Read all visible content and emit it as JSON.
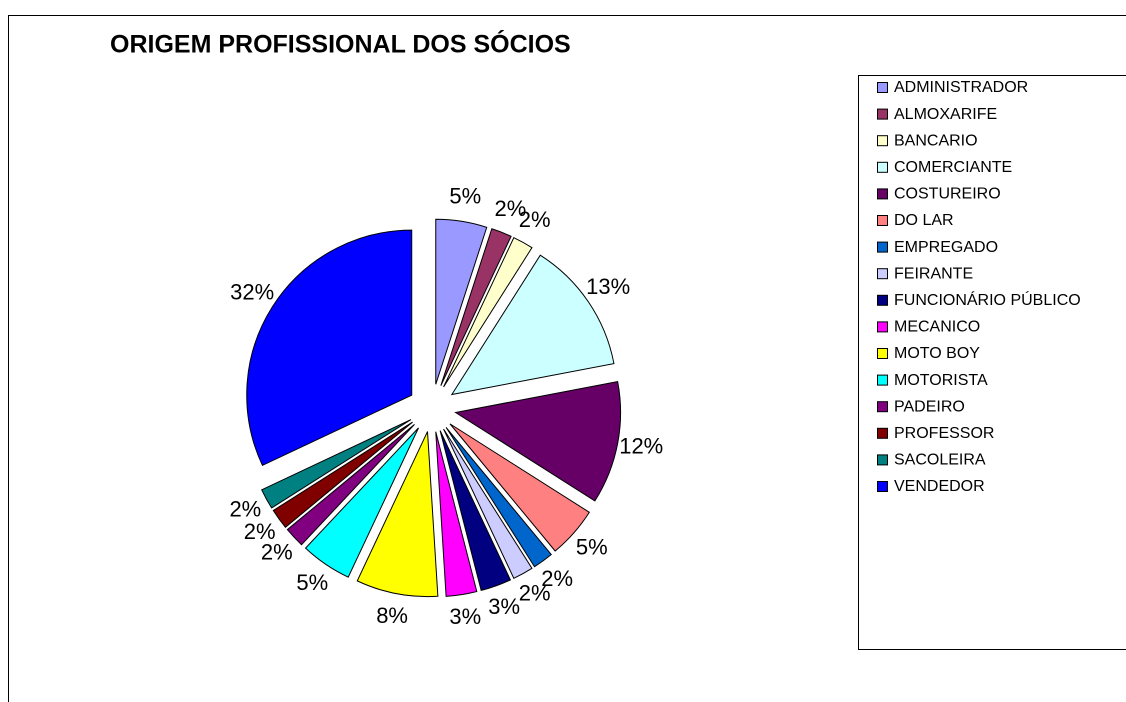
{
  "chart_data": {
    "type": "pie",
    "title": "ORIGEM PROFISSIONAL DOS SÓCIOS",
    "categories": [
      "ADMINISTRADOR",
      "ALMOXARIFE",
      "BANCARIO",
      "COMERCIANTE",
      "COSTUREIRO",
      "DO LAR",
      "EMPREGADO",
      "FEIRANTE",
      "FUNCIONÁRIO PÚBLICO",
      "MECANICO",
      "MOTO BOY",
      "MOTORISTA",
      "PADEIRO",
      "PROFESSOR",
      "SACOLEIRA",
      "VENDEDOR"
    ],
    "values": [
      5,
      2,
      2,
      13,
      12,
      5,
      2,
      2,
      3,
      3,
      8,
      5,
      2,
      2,
      2,
      32
    ],
    "value_labels": [
      "5%",
      "2%",
      "2%",
      "13%",
      "12%",
      "5%",
      "2%",
      "2%",
      "3%",
      "3%",
      "8%",
      "5%",
      "2%",
      "2%",
      "2%",
      "32%"
    ],
    "colors": [
      "#9999ff",
      "#993366",
      "#ffffcc",
      "#ccffff",
      "#660066",
      "#ff8080",
      "#0066cc",
      "#ccccff",
      "#000080",
      "#ff00ff",
      "#ffff00",
      "#00ffff",
      "#800080",
      "#800000",
      "#008080",
      "#0000ff"
    ],
    "legend": "right"
  }
}
